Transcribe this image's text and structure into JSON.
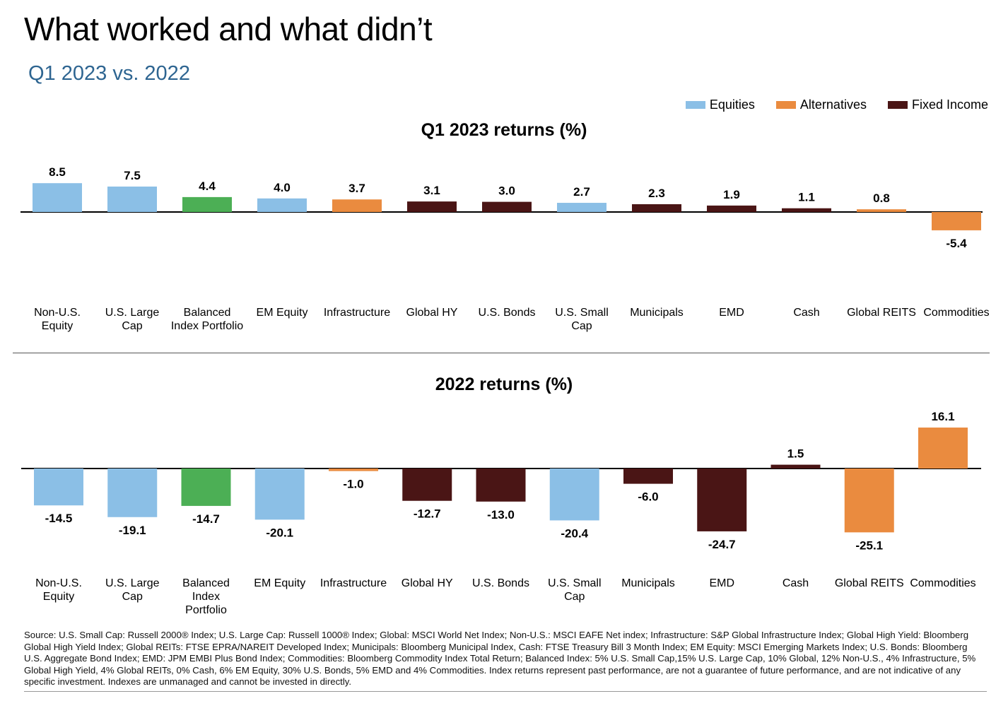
{
  "header": {
    "title": "What worked and what didn’t",
    "subtitle": "Q1 2023 vs. 2022"
  },
  "legend": [
    {
      "label": "Equities",
      "color": "#8bbfe6"
    },
    {
      "label": "Alternatives",
      "color": "#ea8b3f"
    },
    {
      "label": "Fixed Income",
      "color": "#4a1515"
    }
  ],
  "colors": {
    "Equities": "#8bbfe6",
    "Alternatives": "#ea8b3f",
    "Fixed Income": "#4a1515",
    "Balanced": "#4caf55"
  },
  "chart_data": [
    {
      "type": "bar",
      "title": "Q1 2023 returns (%)",
      "categories": [
        [
          "Non-U.S.",
          "Equity"
        ],
        [
          "U.S. Large",
          "Cap"
        ],
        [
          "Balanced",
          "Index Portfolio"
        ],
        [
          "EM Equity"
        ],
        [
          "Infrastructure"
        ],
        [
          "Global HY"
        ],
        [
          "U.S. Bonds"
        ],
        [
          "U.S. Small",
          "Cap"
        ],
        [
          "Municipals"
        ],
        [
          "EMD"
        ],
        [
          "Cash"
        ],
        [
          "Global REITS"
        ],
        [
          "Commodities"
        ]
      ],
      "values": [
        8.5,
        7.5,
        4.4,
        4.0,
        3.7,
        3.1,
        3.0,
        2.7,
        2.3,
        1.9,
        1.1,
        0.8,
        -5.4
      ],
      "labels": [
        "8.5",
        "7.5",
        "4.4",
        "4.0",
        "3.7",
        "3.1",
        "3.0",
        "2.7",
        "2.3",
        "1.9",
        "1.1",
        "0.8",
        "-5.4"
      ],
      "groups": [
        "Equities",
        "Equities",
        "Balanced",
        "Equities",
        "Alternatives",
        "Fixed Income",
        "Fixed Income",
        "Equities",
        "Fixed Income",
        "Fixed Income",
        "Fixed Income",
        "Alternatives",
        "Alternatives"
      ]
    },
    {
      "type": "bar",
      "title": "2022 returns (%)",
      "categories": [
        [
          "Non-U.S.",
          "Equity"
        ],
        [
          "U.S. Large",
          "Cap"
        ],
        [
          "Balanced",
          "Index",
          "Portfolio"
        ],
        [
          "EM Equity"
        ],
        [
          "Infrastructure"
        ],
        [
          "Global HY"
        ],
        [
          "U.S. Bonds"
        ],
        [
          "U.S. Small",
          "Cap"
        ],
        [
          "Municipals"
        ],
        [
          "EMD"
        ],
        [
          "Cash"
        ],
        [
          "Global REITS"
        ],
        [
          "Commodities"
        ]
      ],
      "values": [
        -14.5,
        -19.1,
        -14.7,
        -20.1,
        -1.0,
        -12.7,
        -13.0,
        -20.4,
        -6.0,
        -24.7,
        1.5,
        -25.1,
        16.1
      ],
      "labels": [
        "-14.5",
        "-19.1",
        "-14.7",
        "-20.1",
        "-1.0",
        "-12.7",
        "-13.0",
        "-20.4",
        "-6.0",
        "-24.7",
        "1.5",
        "-25.1",
        "16.1"
      ],
      "groups": [
        "Equities",
        "Equities",
        "Balanced",
        "Equities",
        "Alternatives",
        "Fixed Income",
        "Fixed Income",
        "Equities",
        "Fixed Income",
        "Fixed Income",
        "Fixed Income",
        "Alternatives",
        "Alternatives"
      ]
    }
  ],
  "footnote": "Source: U.S. Small Cap: Russell 2000® Index; U.S. Large Cap: Russell 1000® Index; Global: MSCI World Net Index; Non-U.S.: MSCI EAFE Net index; Infrastructure: S&P Global Infrastructure Index; Global High Yield: Bloomberg Global High Yield Index; Global REITs: FTSE EPRA/NAREIT Developed Index; Municipals: Bloomberg Municipal Index, Cash: FTSE Treasury Bill 3 Month Index; EM Equity: MSCI Emerging Markets Index; U.S. Bonds: Bloomberg U.S. Aggregate Bond Index; EMD: JPM EMBI Plus Bond Index; Commodities: Bloomberg Commodity Index Total Return; Balanced Index: 5% U.S. Small Cap,15% U.S. Large Cap, 10% Global, 12% Non-U.S., 4% Infrastructure, 5% Global High Yield, 4% Global REITs, 0% Cash, 6% EM Equity, 30% U.S. Bonds, 5% EMD and 4% Commodities. Index returns represent past performance, are not a guarantee of future performance, and are not indicative of any specific investment. Indexes are unmanaged and cannot be invested in directly."
}
